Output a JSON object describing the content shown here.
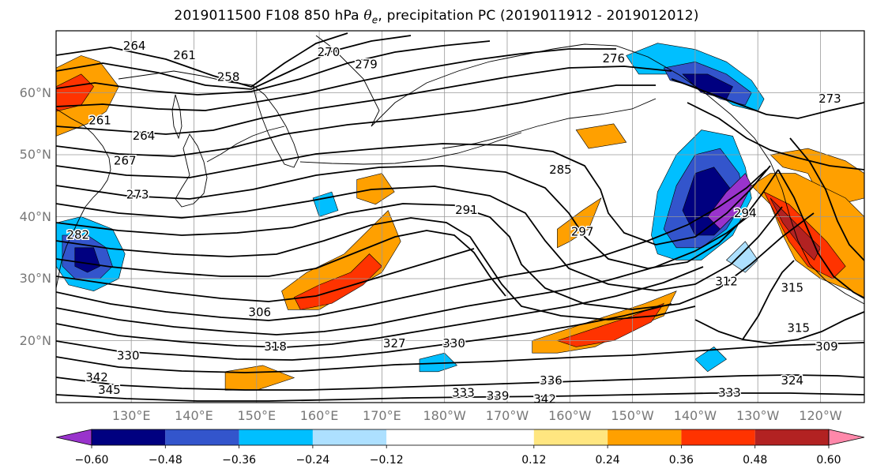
{
  "title": {
    "prefix": "2019011500 F108 850 hPa ",
    "symbol": "θ",
    "subscript": "e",
    "suffix": ", precipitation PC (2019011912 - 2019012012)"
  },
  "map": {
    "projection": "PlateCarree",
    "lon_range_east_deg": [
      118,
      247
    ],
    "lat_range_deg": [
      10,
      70
    ],
    "gridlines": true,
    "lat_ticks": [
      {
        "value": 20,
        "label": "20°N"
      },
      {
        "value": 30,
        "label": "30°N"
      },
      {
        "value": 40,
        "label": "40°N"
      },
      {
        "value": 50,
        "label": "50°N"
      },
      {
        "value": 60,
        "label": "60°N"
      }
    ],
    "lon_ticks": [
      {
        "value": 130,
        "label": "130°E"
      },
      {
        "value": 140,
        "label": "140°E"
      },
      {
        "value": 150,
        "label": "150°E"
      },
      {
        "value": 160,
        "label": "160°E"
      },
      {
        "value": 170,
        "label": "170°E"
      },
      {
        "value": 180,
        "label": "180°W"
      },
      {
        "value": 190,
        "label": "170°W"
      },
      {
        "value": 200,
        "label": "160°W"
      },
      {
        "value": 210,
        "label": "150°W"
      },
      {
        "value": 220,
        "label": "140°W"
      },
      {
        "value": 230,
        "label": "130°W"
      },
      {
        "value": 240,
        "label": "120°W"
      }
    ],
    "contour_labels": [
      {
        "text": "264",
        "lon": 130.5,
        "lat": 67.5
      },
      {
        "text": "261",
        "lon": 138.5,
        "lat": 66.0
      },
      {
        "text": "258",
        "lon": 145.5,
        "lat": 62.5
      },
      {
        "text": "270",
        "lon": 161.5,
        "lat": 66.5
      },
      {
        "text": "279",
        "lon": 167.5,
        "lat": 64.5
      },
      {
        "text": "276",
        "lon": 207.0,
        "lat": 65.5
      },
      {
        "text": "273",
        "lon": 241.5,
        "lat": 59.0
      },
      {
        "text": "261",
        "lon": 125.0,
        "lat": 55.5
      },
      {
        "text": "264",
        "lon": 132.0,
        "lat": 53.0
      },
      {
        "text": "267",
        "lon": 129.0,
        "lat": 49.0
      },
      {
        "text": "273",
        "lon": 131.0,
        "lat": 43.5
      },
      {
        "text": "285",
        "lon": 198.5,
        "lat": 47.5
      },
      {
        "text": "291",
        "lon": 183.5,
        "lat": 41.0
      },
      {
        "text": "282",
        "lon": 121.5,
        "lat": 37.0
      },
      {
        "text": "306",
        "lon": 150.5,
        "lat": 24.5
      },
      {
        "text": "318",
        "lon": 153.0,
        "lat": 19.0
      },
      {
        "text": "327",
        "lon": 172.0,
        "lat": 19.5
      },
      {
        "text": "330",
        "lon": 181.5,
        "lat": 19.5
      },
      {
        "text": "330",
        "lon": 129.5,
        "lat": 17.5
      },
      {
        "text": "342",
        "lon": 124.5,
        "lat": 14.0
      },
      {
        "text": "345",
        "lon": 126.5,
        "lat": 12.0
      },
      {
        "text": "333",
        "lon": 183.0,
        "lat": 11.5
      },
      {
        "text": "336",
        "lon": 197.0,
        "lat": 13.5
      },
      {
        "text": "339",
        "lon": 188.5,
        "lat": 11.0
      },
      {
        "text": "342",
        "lon": 196.0,
        "lat": 10.5
      },
      {
        "text": "333",
        "lon": 225.5,
        "lat": 11.5
      },
      {
        "text": "324",
        "lon": 235.5,
        "lat": 13.5
      },
      {
        "text": "312",
        "lon": 225.0,
        "lat": 29.5
      },
      {
        "text": "315",
        "lon": 235.5,
        "lat": 28.5
      },
      {
        "text": "315",
        "lon": 236.5,
        "lat": 22.0
      },
      {
        "text": "309",
        "lon": 241.0,
        "lat": 19.0
      },
      {
        "text": "297",
        "lon": 202.0,
        "lat": 37.5
      },
      {
        "text": "294",
        "lon": 228.0,
        "lat": 40.5
      }
    ],
    "precip_pc_regions": [
      {
        "category": "pos_0.24",
        "points": [
          [
            118,
            64
          ],
          [
            122,
            66
          ],
          [
            125,
            65
          ],
          [
            128,
            61
          ],
          [
            126,
            57
          ],
          [
            123,
            55
          ],
          [
            118,
            53
          ]
        ]
      },
      {
        "category": "pos_0.36",
        "points": [
          [
            118,
            61
          ],
          [
            122,
            63
          ],
          [
            124,
            61
          ],
          [
            122,
            58
          ],
          [
            118,
            57
          ]
        ]
      },
      {
        "category": "pos_0.24",
        "points": [
          [
            154,
            28
          ],
          [
            158,
            31
          ],
          [
            164,
            34
          ],
          [
            168,
            38
          ],
          [
            171,
            41
          ],
          [
            173,
            36
          ],
          [
            170,
            31
          ],
          [
            165,
            28
          ],
          [
            160,
            25
          ],
          [
            155,
            25
          ]
        ]
      },
      {
        "category": "pos_0.36",
        "points": [
          [
            156,
            27
          ],
          [
            160,
            29
          ],
          [
            165,
            31
          ],
          [
            168,
            34
          ],
          [
            170,
            32
          ],
          [
            167,
            29
          ],
          [
            162,
            26
          ],
          [
            157,
            25
          ]
        ]
      },
      {
        "category": "pos_0.24",
        "points": [
          [
            166,
            46
          ],
          [
            170,
            47
          ],
          [
            172,
            44
          ],
          [
            169,
            42
          ],
          [
            166,
            43
          ]
        ]
      },
      {
        "category": "pos_0.24",
        "points": [
          [
            198,
            38
          ],
          [
            202,
            41
          ],
          [
            205,
            43
          ],
          [
            203,
            38
          ],
          [
            200,
            36
          ],
          [
            198,
            35
          ]
        ]
      },
      {
        "category": "pos_0.24",
        "points": [
          [
            194,
            20
          ],
          [
            200,
            22
          ],
          [
            206,
            24
          ],
          [
            212,
            26
          ],
          [
            217,
            28
          ],
          [
            215,
            24
          ],
          [
            210,
            22
          ],
          [
            204,
            19
          ],
          [
            198,
            18
          ],
          [
            194,
            18
          ]
        ]
      },
      {
        "category": "pos_0.36",
        "points": [
          [
            198,
            20
          ],
          [
            204,
            22
          ],
          [
            210,
            24
          ],
          [
            215,
            26
          ],
          [
            213,
            23
          ],
          [
            207,
            20
          ],
          [
            201,
            19
          ]
        ]
      },
      {
        "category": "pos_0.24",
        "points": [
          [
            232,
            50
          ],
          [
            238,
            51
          ],
          [
            244,
            49
          ],
          [
            247,
            47
          ],
          [
            247,
            43
          ],
          [
            243,
            42
          ],
          [
            240,
            43
          ],
          [
            238,
            47
          ],
          [
            234,
            48
          ]
        ]
      },
      {
        "category": "pos_0.24",
        "points": [
          [
            229,
            45
          ],
          [
            232,
            42
          ],
          [
            234,
            37
          ],
          [
            236,
            33
          ],
          [
            240,
            30
          ],
          [
            245,
            28
          ],
          [
            247,
            27
          ],
          [
            247,
            40
          ],
          [
            244,
            43
          ],
          [
            240,
            45
          ],
          [
            236,
            47
          ],
          [
            232,
            47
          ]
        ]
      },
      {
        "category": "pos_0.36",
        "points": [
          [
            231,
            44
          ],
          [
            233,
            40
          ],
          [
            235,
            36
          ],
          [
            238,
            32
          ],
          [
            242,
            30
          ],
          [
            244,
            32
          ],
          [
            241,
            36
          ],
          [
            238,
            39
          ],
          [
            235,
            42
          ]
        ]
      },
      {
        "category": "pos_0.48",
        "points": [
          [
            232,
            43
          ],
          [
            234,
            39
          ],
          [
            237,
            35
          ],
          [
            239,
            33
          ],
          [
            240,
            35
          ],
          [
            237,
            38
          ],
          [
            234,
            41
          ]
        ]
      },
      {
        "category": "pos_0.24",
        "points": [
          [
            145,
            15
          ],
          [
            151,
            16
          ],
          [
            156,
            14
          ],
          [
            150,
            12
          ],
          [
            145,
            12
          ]
        ]
      },
      {
        "category": "pos_0.24",
        "points": [
          [
            201,
            54
          ],
          [
            207,
            55
          ],
          [
            209,
            52
          ],
          [
            203,
            51
          ]
        ]
      },
      {
        "category": "neg_0.24",
        "points": [
          [
            209,
            66
          ],
          [
            214,
            68
          ],
          [
            220,
            67
          ],
          [
            225,
            65
          ],
          [
            229,
            62
          ],
          [
            231,
            59
          ],
          [
            230,
            57
          ],
          [
            226,
            58
          ],
          [
            222,
            61
          ],
          [
            217,
            63
          ],
          [
            211,
            63
          ]
        ]
      },
      {
        "category": "neg_0.36",
        "points": [
          [
            215,
            64
          ],
          [
            220,
            65
          ],
          [
            225,
            63
          ],
          [
            229,
            60
          ],
          [
            228,
            58
          ],
          [
            224,
            59
          ],
          [
            220,
            61
          ],
          [
            216,
            62
          ]
        ]
      },
      {
        "category": "neg_0.48",
        "points": [
          [
            218,
            63
          ],
          [
            222,
            63
          ],
          [
            226,
            61
          ],
          [
            225,
            59
          ],
          [
            221,
            60
          ]
        ]
      },
      {
        "category": "neg_0.24",
        "points": [
          [
            213,
            37
          ],
          [
            214,
            44
          ],
          [
            217,
            50
          ],
          [
            221,
            54
          ],
          [
            226,
            53
          ],
          [
            228,
            48
          ],
          [
            229,
            43
          ],
          [
            226,
            37
          ],
          [
            221,
            33
          ],
          [
            217,
            33
          ],
          [
            214,
            34
          ]
        ]
      },
      {
        "category": "neg_0.36",
        "points": [
          [
            215,
            38
          ],
          [
            217,
            45
          ],
          [
            220,
            50
          ],
          [
            224,
            51
          ],
          [
            227,
            47
          ],
          [
            228,
            43
          ],
          [
            225,
            38
          ],
          [
            221,
            35
          ],
          [
            217,
            35
          ]
        ]
      },
      {
        "category": "neg_0.48",
        "points": [
          [
            218,
            41
          ],
          [
            220,
            47
          ],
          [
            223,
            48
          ],
          [
            226,
            44
          ],
          [
            226,
            40
          ],
          [
            223,
            37
          ],
          [
            220,
            37
          ]
        ]
      },
      {
        "category": "neg_0.60",
        "points": [
          [
            222,
            40
          ],
          [
            225,
            44
          ],
          [
            228,
            47
          ],
          [
            229,
            45
          ],
          [
            227,
            41
          ],
          [
            224,
            38
          ]
        ]
      },
      {
        "category": "neg_0.24",
        "points": [
          [
            118,
            39
          ],
          [
            122,
            40
          ],
          [
            127,
            38
          ],
          [
            129,
            34
          ],
          [
            128,
            30
          ],
          [
            124,
            28
          ],
          [
            120,
            29
          ],
          [
            118,
            32
          ]
        ]
      },
      {
        "category": "neg_0.36",
        "points": [
          [
            119,
            37
          ],
          [
            123,
            37
          ],
          [
            126,
            35
          ],
          [
            127,
            32
          ],
          [
            125,
            30
          ],
          [
            121,
            30
          ],
          [
            119,
            32
          ]
        ]
      },
      {
        "category": "neg_0.48",
        "points": [
          [
            121,
            35
          ],
          [
            124,
            35
          ],
          [
            125,
            32
          ],
          [
            123,
            31
          ],
          [
            121,
            32
          ]
        ]
      },
      {
        "category": "neg_0.12",
        "points": [
          [
            225,
            33
          ],
          [
            228,
            36
          ],
          [
            230,
            33
          ],
          [
            228,
            31
          ]
        ]
      },
      {
        "category": "neg_0.24",
        "points": [
          [
            176,
            17
          ],
          [
            180,
            18
          ],
          [
            182,
            16
          ],
          [
            179,
            15
          ],
          [
            176,
            15
          ]
        ]
      },
      {
        "category": "neg_0.24",
        "points": [
          [
            220,
            17
          ],
          [
            223,
            19
          ],
          [
            225,
            17
          ],
          [
            222,
            15
          ]
        ]
      },
      {
        "category": "neg_0.24",
        "points": [
          [
            159,
            43
          ],
          [
            162,
            44
          ],
          [
            163,
            41
          ],
          [
            160,
            40
          ]
        ]
      }
    ]
  },
  "colorbar": {
    "colors": [
      "#9933CC",
      "#000080",
      "#3355CC",
      "#00BFFF",
      "#ADE0FF",
      "#FFFFFF",
      "#FFE680",
      "#FFA000",
      "#FF3300",
      "#B22222",
      "#FF88AA"
    ],
    "bounds": [
      -0.72,
      -0.6,
      -0.48,
      -0.36,
      -0.24,
      -0.12,
      0.12,
      0.24,
      0.36,
      0.48,
      0.6,
      0.72
    ],
    "extend": "both",
    "tick_labels": [
      "−0.60",
      "−0.48",
      "−0.36",
      "−0.24",
      "−0.12",
      "0.12",
      "0.24",
      "0.36",
      "0.48",
      "0.60"
    ]
  }
}
